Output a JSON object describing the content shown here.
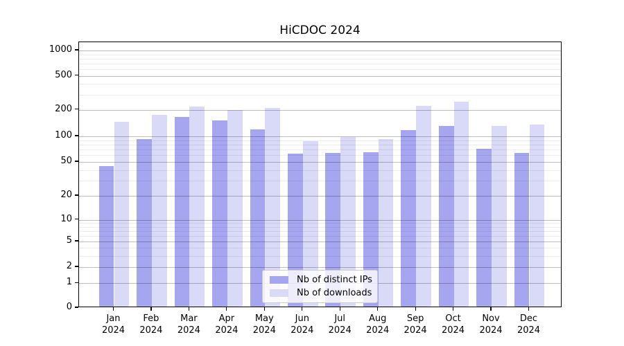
{
  "figure": {
    "background": "#ffffff"
  },
  "chart_data": {
    "type": "bar",
    "title": "HiCDOC 2024",
    "categories": [
      "Jan 2024",
      "Feb 2024",
      "Mar 2024",
      "Apr 2024",
      "May 2024",
      "Jun 2024",
      "Jul 2024",
      "Aug 2024",
      "Sep 2024",
      "Oct 2024",
      "Nov 2024",
      "Dec 2024"
    ],
    "series": [
      {
        "name": "Nb of distinct IPs",
        "color": "#a5a5f0",
        "values": [
          43,
          90,
          160,
          145,
          116,
          60,
          62,
          63,
          114,
          127,
          69,
          61
        ]
      },
      {
        "name": "Nb of downloads",
        "color": "#d9d9f8",
        "values": [
          140,
          170,
          210,
          190,
          202,
          84,
          94,
          89,
          212,
          240,
          127,
          131
        ]
      },
      {
        "name": "",
        "color": "",
        "values": []
      }
    ],
    "xlabel": "",
    "ylabel": "",
    "yscale": "symlog",
    "yticks": [
      0,
      1,
      2,
      5,
      10,
      20,
      50,
      100,
      200,
      500,
      1000
    ],
    "ylim": [
      0,
      1250
    ],
    "grid": true,
    "legend_position": "lower center"
  }
}
